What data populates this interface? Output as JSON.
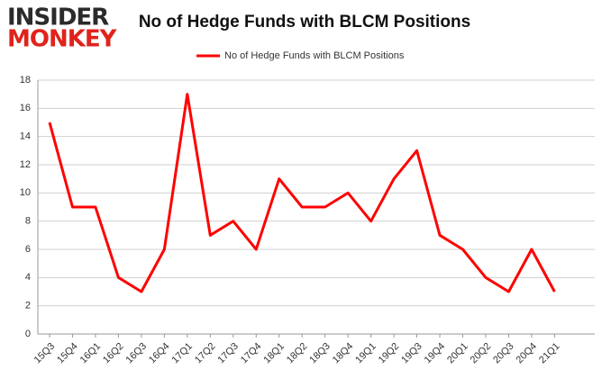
{
  "logo": {
    "line1": "INSIDER",
    "line2": "MONKEY"
  },
  "chart_data": {
    "type": "line",
    "title": "No of Hedge Funds with BLCM Positions",
    "categories": [
      "15Q3",
      "15Q4",
      "16Q1",
      "16Q2",
      "16Q3",
      "16Q4",
      "17Q1",
      "17Q2",
      "17Q3",
      "17Q4",
      "18Q1",
      "18Q2",
      "18Q3",
      "18Q4",
      "19Q1",
      "19Q2",
      "19Q3",
      "19Q4",
      "20Q1",
      "20Q2",
      "20Q3",
      "20Q4",
      "21Q1"
    ],
    "series": [
      {
        "name": "No of Hedge Funds with BLCM Positions",
        "color": "#ff0000",
        "values": [
          15,
          9,
          9,
          4,
          3,
          6,
          17,
          7,
          8,
          6,
          11,
          9,
          9,
          10,
          8,
          11,
          13,
          7,
          6,
          4,
          3,
          6,
          3
        ]
      }
    ],
    "ylim": [
      0,
      18
    ],
    "yticks": [
      0,
      2,
      4,
      6,
      8,
      10,
      12,
      14,
      16,
      18
    ],
    "grid": true,
    "legend": "top"
  }
}
